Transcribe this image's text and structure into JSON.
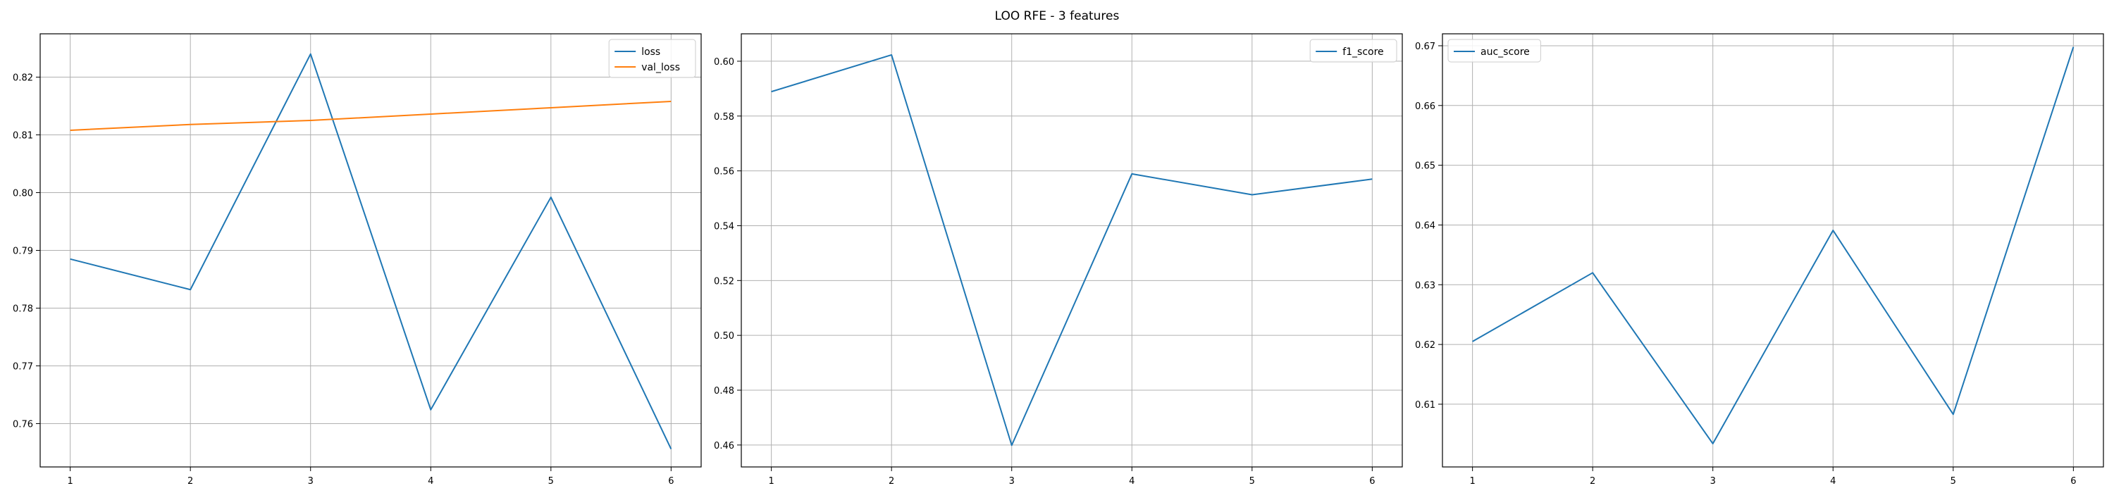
{
  "figure": {
    "title": "LOO RFE - 3 features"
  },
  "colors": {
    "blue": "#1f77b4",
    "orange": "#ff7f0e",
    "grid": "#b0b0b0",
    "axis": "#000000"
  },
  "chart_data": [
    {
      "type": "line",
      "x": [
        1,
        2,
        3,
        4,
        5,
        6
      ],
      "xticks": [
        "1",
        "2",
        "3",
        "4",
        "5",
        "6"
      ],
      "xlim": [
        0.75,
        6.25
      ],
      "ylim": [
        0.7525,
        0.8275
      ],
      "yticks": [
        0.76,
        0.77,
        0.78,
        0.79,
        0.8,
        0.81,
        0.82
      ],
      "yticklabels": [
        "0.76",
        "0.77",
        "0.78",
        "0.79",
        "0.80",
        "0.81",
        "0.82"
      ],
      "grid": true,
      "legend": "upper-right",
      "series": [
        {
          "name": "loss",
          "color": "#1f77b4",
          "values": [
            0.7885,
            0.7832,
            0.824,
            0.7624,
            0.7992,
            0.7556
          ]
        },
        {
          "name": "val_loss",
          "color": "#ff7f0e",
          "values": [
            0.8108,
            0.8118,
            0.8125,
            0.8136,
            0.8147,
            0.8158
          ]
        }
      ]
    },
    {
      "type": "line",
      "x": [
        1,
        2,
        3,
        4,
        5,
        6
      ],
      "xticks": [
        "1",
        "2",
        "3",
        "4",
        "5",
        "6"
      ],
      "xlim": [
        0.75,
        6.25
      ],
      "ylim": [
        0.452,
        0.61
      ],
      "yticks": [
        0.46,
        0.48,
        0.5,
        0.52,
        0.54,
        0.56,
        0.58,
        0.6
      ],
      "yticklabels": [
        "0.46",
        "0.48",
        "0.50",
        "0.52",
        "0.54",
        "0.56",
        "0.58",
        "0.60"
      ],
      "grid": true,
      "legend": "upper-right",
      "series": [
        {
          "name": "f1_score",
          "color": "#1f77b4",
          "values": [
            0.5889,
            0.6023,
            0.4599,
            0.5589,
            0.5513,
            0.557
          ]
        }
      ]
    },
    {
      "type": "line",
      "x": [
        1,
        2,
        3,
        4,
        5,
        6
      ],
      "xticks": [
        "1",
        "2",
        "3",
        "4",
        "5",
        "6"
      ],
      "xlim": [
        0.75,
        6.25
      ],
      "ylim": [
        0.5995,
        0.672
      ],
      "yticks": [
        0.61,
        0.62,
        0.63,
        0.64,
        0.65,
        0.66,
        0.67
      ],
      "yticklabels": [
        "0.61",
        "0.62",
        "0.63",
        "0.64",
        "0.65",
        "0.66",
        "0.67"
      ],
      "grid": true,
      "legend": "upper-left",
      "series": [
        {
          "name": "auc_score",
          "color": "#1f77b4",
          "values": [
            0.6205,
            0.632,
            0.6034,
            0.6391,
            0.6083,
            0.6698
          ]
        }
      ]
    }
  ]
}
